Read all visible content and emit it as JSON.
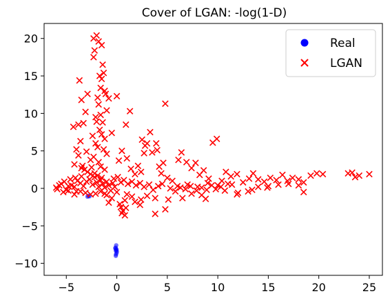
{
  "chart_data": {
    "type": "scatter",
    "title": "Cover of LGAN: -log(1-D)",
    "xlabel": "",
    "ylabel": "",
    "xlim": [
      -7.2,
      26.3
    ],
    "ylim": [
      -11.6,
      22.0
    ],
    "xticks": [
      -5,
      0,
      5,
      10,
      15,
      20,
      25
    ],
    "yticks": [
      -10,
      -5,
      0,
      5,
      10,
      15,
      20
    ],
    "grid": false,
    "legend": "top-right",
    "series": [
      {
        "name": "Real",
        "marker": "circle",
        "color": "#0000ff",
        "points": [
          [
            -0.05,
            -8.1
          ],
          [
            -0.1,
            -8.3
          ],
          [
            -0.02,
            -8.6
          ],
          [
            -0.12,
            -7.9
          ],
          [
            -0.08,
            -8.8
          ],
          [
            0.0,
            -8.4
          ],
          [
            -0.15,
            -8.0
          ],
          [
            -0.06,
            -7.6
          ],
          [
            -0.1,
            -9.0
          ],
          [
            -0.04,
            -8.2
          ],
          [
            -2.8,
            -1.0
          ],
          [
            -2.9,
            -1.1
          ],
          [
            -2.7,
            -1.05
          ]
        ]
      },
      {
        "name": "LGAN",
        "marker": "x",
        "color": "#ff0000",
        "points": [
          [
            -5.9,
            -0.1
          ],
          [
            -5.5,
            0.6
          ],
          [
            -5.2,
            0.9
          ],
          [
            -4.8,
            0.3
          ],
          [
            -4.5,
            0.4
          ],
          [
            -4.2,
            0.2
          ],
          [
            -3.9,
            1.0
          ],
          [
            -3.6,
            0.7
          ],
          [
            -3.3,
            0.3
          ],
          [
            -3.0,
            0.9
          ],
          [
            -2.7,
            1.2
          ],
          [
            -2.4,
            0.5
          ],
          [
            -2.2,
            1.5
          ],
          [
            -2.0,
            0.8
          ],
          [
            -1.8,
            0.2
          ],
          [
            -1.6,
            1.1
          ],
          [
            -1.4,
            0.6
          ],
          [
            -1.2,
            0.1
          ],
          [
            -1.0,
            0.9
          ],
          [
            -0.8,
            0.4
          ],
          [
            -0.6,
            -0.3
          ],
          [
            -0.4,
            0.7
          ],
          [
            -0.2,
            0.2
          ],
          [
            0.0,
            -0.5
          ],
          [
            -5.0,
            -0.2
          ],
          [
            -4.0,
            -0.4
          ],
          [
            -3.5,
            1.6
          ],
          [
            -3.2,
            2.5
          ],
          [
            -3.4,
            3.0
          ],
          [
            -2.9,
            2.2
          ],
          [
            -2.6,
            1.9
          ],
          [
            -2.5,
            2.8
          ],
          [
            -3.3,
            8.7
          ],
          [
            -3.1,
            10.2
          ],
          [
            -2.9,
            12.6
          ],
          [
            -3.7,
            14.4
          ],
          [
            -3.5,
            11.8
          ],
          [
            -2.3,
            17.5
          ],
          [
            -2.2,
            18.4
          ],
          [
            -2.3,
            20.0
          ],
          [
            -2.0,
            20.4
          ],
          [
            -1.8,
            19.6
          ],
          [
            -1.5,
            19.1
          ],
          [
            -1.4,
            16.5
          ],
          [
            -1.3,
            15.4
          ],
          [
            -1.2,
            13.0
          ],
          [
            -1.5,
            14.6
          ],
          [
            -1.1,
            12.6
          ],
          [
            -1.7,
            15.0
          ],
          [
            -1.6,
            13.4
          ],
          [
            -1.9,
            12.1
          ],
          [
            -1.8,
            11.2
          ],
          [
            -1.6,
            9.8
          ],
          [
            -1.4,
            8.8
          ],
          [
            -2.0,
            8.9
          ],
          [
            -2.1,
            9.5
          ],
          [
            -1.7,
            7.8
          ],
          [
            -1.5,
            7.2
          ],
          [
            -1.2,
            6.6
          ],
          [
            -2.4,
            7.0
          ],
          [
            -2.1,
            6.0
          ],
          [
            -1.9,
            5.5
          ],
          [
            -1.3,
            5.2
          ],
          [
            -1.0,
            4.6
          ],
          [
            -2.3,
            4.2
          ],
          [
            -2.6,
            3.8
          ],
          [
            -1.8,
            3.5
          ],
          [
            -1.6,
            2.9
          ],
          [
            -1.2,
            2.5
          ],
          [
            -2.2,
            2.0
          ],
          [
            -1.9,
            1.7
          ],
          [
            -1.5,
            1.4
          ],
          [
            -0.8,
            12.0
          ],
          [
            -1.0,
            10.4
          ],
          [
            -0.5,
            7.4
          ],
          [
            0.0,
            12.3
          ],
          [
            0.9,
            8.5
          ],
          [
            1.3,
            10.3
          ],
          [
            0.5,
            5.0
          ],
          [
            0.2,
            3.7
          ],
          [
            -3.8,
            8.5
          ],
          [
            -4.3,
            8.2
          ],
          [
            -3.6,
            6.3
          ],
          [
            -4.0,
            5.2
          ],
          [
            -3.8,
            4.4
          ],
          [
            -4.2,
            3.2
          ],
          [
            -3.5,
            2.7
          ],
          [
            -3.0,
            4.9
          ],
          [
            1.0,
            4.0
          ],
          [
            1.4,
            2.6
          ],
          [
            1.8,
            1.9
          ],
          [
            2.1,
            3.0
          ],
          [
            2.4,
            2.2
          ],
          [
            2.8,
            5.7
          ],
          [
            3.0,
            6.0
          ],
          [
            3.3,
            7.5
          ],
          [
            2.5,
            6.5
          ],
          [
            2.7,
            4.7
          ],
          [
            3.5,
            4.8
          ],
          [
            3.9,
            6.0
          ],
          [
            4.0,
            5.1
          ],
          [
            4.2,
            2.9
          ],
          [
            4.6,
            3.4
          ],
          [
            4.8,
            11.3
          ],
          [
            4.4,
            2.0
          ],
          [
            5.0,
            1.4
          ],
          [
            5.5,
            1.0
          ],
          [
            6.1,
            3.8
          ],
          [
            6.4,
            4.8
          ],
          [
            6.9,
            3.5
          ],
          [
            7.4,
            2.7
          ],
          [
            7.8,
            3.4
          ],
          [
            8.2,
            1.8
          ],
          [
            8.6,
            2.4
          ],
          [
            9.1,
            1.3
          ],
          [
            9.5,
            6.1
          ],
          [
            9.9,
            6.6
          ],
          [
            10.4,
            1.0
          ],
          [
            10.8,
            2.2
          ],
          [
            11.3,
            1.6
          ],
          [
            11.9,
            1.9
          ],
          [
            12.5,
            0.8
          ],
          [
            13.1,
            1.3
          ],
          [
            13.5,
            2.0
          ],
          [
            14.0,
            1.2
          ],
          [
            14.6,
            0.9
          ],
          [
            15.2,
            1.4
          ],
          [
            15.8,
            1.1
          ],
          [
            16.4,
            1.8
          ],
          [
            16.9,
            1.0
          ],
          [
            17.4,
            1.4
          ],
          [
            18.0,
            1.2
          ],
          [
            18.5,
            0.8
          ],
          [
            19.2,
            1.7
          ],
          [
            19.8,
            2.0
          ],
          [
            20.4,
            1.9
          ],
          [
            22.9,
            2.0
          ],
          [
            23.3,
            2.1
          ],
          [
            23.6,
            1.5
          ],
          [
            24.0,
            1.7
          ],
          [
            25.0,
            1.9
          ],
          [
            6.0,
            0.3
          ],
          [
            7.0,
            0.5
          ],
          [
            8.0,
            0.2
          ],
          [
            9.0,
            0.7
          ],
          [
            10.0,
            0.4
          ],
          [
            11.0,
            0.6
          ],
          [
            12.0,
            -0.6
          ],
          [
            13.0,
            -0.4
          ],
          [
            14.0,
            0.2
          ],
          [
            15.0,
            0.3
          ],
          [
            16.0,
            0.5
          ],
          [
            17.0,
            0.6
          ],
          [
            18.0,
            0.4
          ],
          [
            18.5,
            -0.5
          ],
          [
            11.9,
            -0.8
          ],
          [
            13.4,
            -0.2
          ],
          [
            14.9,
            0.1
          ],
          [
            7.4,
            -0.7
          ],
          [
            8.8,
            -1.4
          ],
          [
            8.4,
            -0.9
          ],
          [
            6.5,
            -1.3
          ],
          [
            5.1,
            -1.5
          ],
          [
            3.8,
            -1.3
          ],
          [
            3.0,
            -1.0
          ],
          [
            2.4,
            -1.5
          ],
          [
            1.5,
            -1.1
          ],
          [
            1.0,
            -0.8
          ],
          [
            0.8,
            -1.6
          ],
          [
            0.3,
            -2.1
          ],
          [
            0.4,
            -2.5
          ],
          [
            0.6,
            -3.0
          ],
          [
            0.8,
            -3.6
          ],
          [
            0.9,
            -2.6
          ],
          [
            0.5,
            -3.3
          ],
          [
            3.8,
            -3.4
          ],
          [
            4.8,
            -2.8
          ],
          [
            2.3,
            -2.2
          ],
          [
            1.8,
            -1.8
          ],
          [
            -0.5,
            -1.3
          ],
          [
            -0.8,
            -1.9
          ],
          [
            -1.0,
            -0.9
          ],
          [
            -1.2,
            -0.7
          ],
          [
            -1.6,
            -0.4
          ],
          [
            -2.1,
            -0.7
          ],
          [
            -2.6,
            -0.8
          ],
          [
            -3.1,
            -0.6
          ],
          [
            -3.6,
            -0.4
          ],
          [
            -4.2,
            -0.8
          ],
          [
            -4.8,
            -0.3
          ],
          [
            -5.3,
            -0.5
          ],
          [
            -6.0,
            0.1
          ],
          [
            -5.7,
            0.4
          ],
          [
            -4.6,
            1.2
          ],
          [
            -4.1,
            1.4
          ],
          [
            -0.3,
            1.3
          ],
          [
            0.1,
            1.5
          ],
          [
            0.4,
            0.8
          ],
          [
            0.7,
            1.1
          ],
          [
            1.1,
            0.6
          ],
          [
            1.5,
            0.9
          ],
          [
            1.9,
            0.4
          ],
          [
            2.3,
            0.7
          ],
          [
            2.7,
            0.2
          ],
          [
            3.2,
            0.5
          ],
          [
            3.6,
            -0.2
          ],
          [
            4.1,
            0.3
          ],
          [
            4.5,
            0.6
          ],
          [
            5.3,
            0.0
          ],
          [
            5.8,
            -0.4
          ],
          [
            6.3,
            0.1
          ],
          [
            6.8,
            -0.1
          ],
          [
            7.3,
            0.3
          ],
          [
            7.9,
            -0.3
          ],
          [
            8.4,
            0.1
          ],
          [
            8.9,
            -0.2
          ],
          [
            9.4,
            0.4
          ],
          [
            9.8,
            -0.1
          ],
          [
            10.3,
            0.2
          ],
          [
            10.7,
            -0.3
          ],
          [
            11.4,
            0.5
          ]
        ]
      }
    ]
  }
}
